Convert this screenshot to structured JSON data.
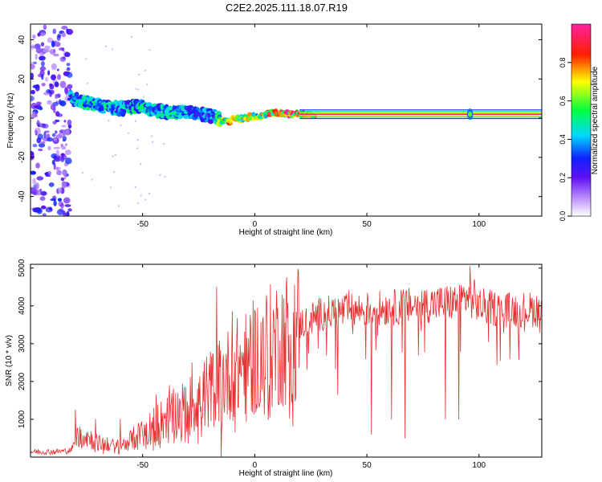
{
  "page": {
    "title": "C2E2.2025.111.18.07.R19"
  },
  "colors": {
    "signal": "#e53030",
    "spectrogram_background": "#ffffff",
    "axis": "#000000"
  },
  "colorbar": {
    "label": "Normalized spectral amplitude",
    "range": [
      0,
      1
    ],
    "ticks": [
      0.0,
      0.2,
      0.4,
      0.6,
      0.8
    ],
    "tick_labels": [
      "0.0",
      "0.2",
      "0.4",
      "0.6",
      "0.8"
    ],
    "colormap": "rainbow (white-violet-blue-cyan-green-yellow-red-magenta)"
  },
  "chart_data": [
    {
      "type": "heatmap",
      "xlabel": "Height of straight line (km)",
      "ylabel": "Frequency (Hz)",
      "xlim": [
        -100,
        128
      ],
      "ylim": [
        -50,
        48
      ],
      "xticks": [
        -50,
        0,
        50,
        100
      ],
      "xtick_labels": [
        "-50",
        "0",
        "50",
        "100"
      ],
      "yticks": [
        -40,
        -20,
        0,
        20,
        40
      ],
      "ytick_labels": [
        "-40",
        "-20",
        "0",
        "20",
        "40"
      ],
      "trace": {
        "x": [
          -82,
          -75,
          -68,
          -60,
          -52,
          -45,
          -38,
          -30,
          -24,
          -18,
          -15,
          -10,
          -5,
          0,
          5,
          10,
          15,
          25,
          40,
          60,
          80,
          96,
          110,
          128
        ],
        "frequency": [
          10,
          8,
          6,
          5,
          6,
          4,
          3,
          3,
          2,
          1,
          -2,
          -1,
          0,
          1,
          2,
          3,
          2,
          2,
          2,
          2,
          2,
          2,
          2,
          2
        ],
        "amplitude": [
          0.4,
          0.45,
          0.45,
          0.4,
          0.45,
          0.4,
          0.45,
          0.4,
          0.35,
          0.4,
          0.6,
          0.75,
          0.7,
          0.6,
          0.7,
          0.8,
          0.85,
          0.9,
          0.95,
          0.95,
          0.95,
          0.95,
          0.95,
          0.95
        ]
      },
      "noise_region": {
        "x": [
          -100,
          -82
        ],
        "frequency": [
          -50,
          48
        ],
        "amplitude": 0.15
      }
    },
    {
      "type": "line",
      "xlabel": "Height of straight line (km)",
      "ylabel": "SNR (10 * v/v)",
      "xlim": [
        -100,
        128
      ],
      "ylim": [
        0,
        5100
      ],
      "xticks": [
        -50,
        0,
        50,
        100
      ],
      "xtick_labels": [
        "-50",
        "0",
        "50",
        "100"
      ],
      "yticks": [
        1000,
        2000,
        3000,
        4000,
        5000
      ],
      "ytick_labels": [
        "1000",
        "2000",
        "3000",
        "4000",
        "5000"
      ],
      "envelope": {
        "x": [
          -100,
          -90,
          -82,
          -78,
          -70,
          -60,
          -50,
          -40,
          -30,
          -20,
          -10,
          0,
          10,
          20,
          30,
          40,
          50,
          60,
          70,
          80,
          90,
          95,
          100,
          110,
          120,
          128
        ],
        "y": [
          150,
          150,
          180,
          700,
          400,
          300,
          700,
          1100,
          1400,
          1900,
          2400,
          2800,
          3200,
          3550,
          3850,
          3900,
          3950,
          4000,
          4050,
          4100,
          4150,
          4300,
          4050,
          3950,
          3950,
          3950
        ]
      },
      "spikes": [
        {
          "x": -80,
          "y": 1250
        },
        {
          "x": -71,
          "y": 1000
        },
        {
          "x": -60,
          "y": 1000
        },
        {
          "x": -44,
          "y": 1650
        },
        {
          "x": -38,
          "y": 1900
        },
        {
          "x": -28,
          "y": 2500
        },
        {
          "x": -17,
          "y": 4500
        },
        {
          "x": -10,
          "y": 3850
        },
        {
          "x": -2,
          "y": 3750
        },
        {
          "x": 13,
          "y": 4200
        },
        {
          "x": 42,
          "y": 4400
        },
        {
          "x": 76,
          "y": 4400
        },
        {
          "x": 96,
          "y": 5050
        },
        {
          "x": 98,
          "y": 4700
        }
      ],
      "dips": [
        {
          "x": -15,
          "y": 0
        },
        {
          "x": 37,
          "y": 1650
        },
        {
          "x": 52,
          "y": 600
        },
        {
          "x": 61,
          "y": 1000
        },
        {
          "x": 67,
          "y": 500
        },
        {
          "x": 85,
          "y": 1000
        },
        {
          "x": 91,
          "y": 1000
        }
      ]
    }
  ]
}
